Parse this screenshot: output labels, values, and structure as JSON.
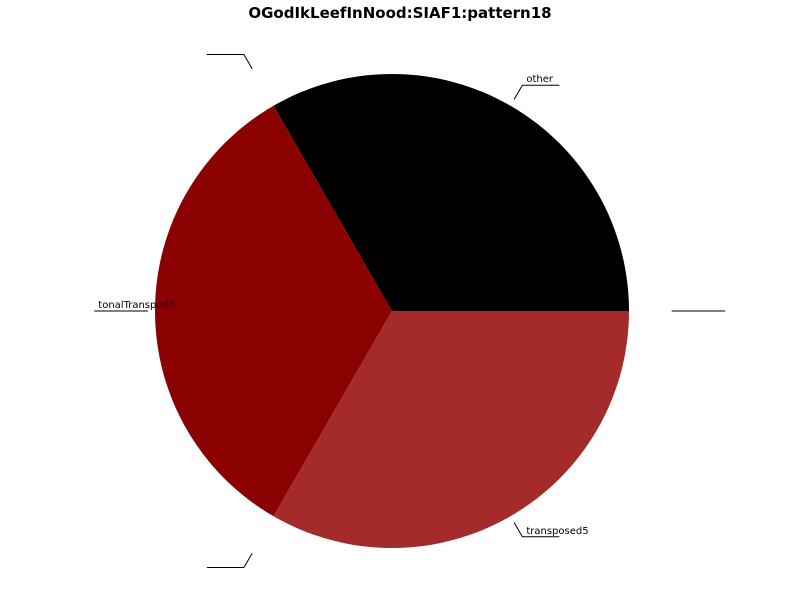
{
  "chart_data": {
    "type": "pie",
    "title": "OGodIkLeefInNood:SIAF1:pattern18",
    "slices": [
      {
        "label": "other",
        "value": 1,
        "color": "#000000",
        "explode": 0
      },
      {
        "label": "",
        "value": 0,
        "color": "#000000",
        "explode": 0.15
      },
      {
        "label": "tonalTransped5",
        "value": 1,
        "color": "#8b0000",
        "explode": 0
      },
      {
        "label": "",
        "value": 0,
        "color": "#8b0000",
        "explode": 0.15
      },
      {
        "label": "transposed5",
        "value": 1,
        "color": "#a52a2a",
        "explode": 0
      },
      {
        "label": "",
        "value": 0,
        "color": "#a52a2a",
        "explode": 0.15
      }
    ],
    "start_angle_deg": 0,
    "direction": "counterclockwise",
    "legend": "none"
  }
}
